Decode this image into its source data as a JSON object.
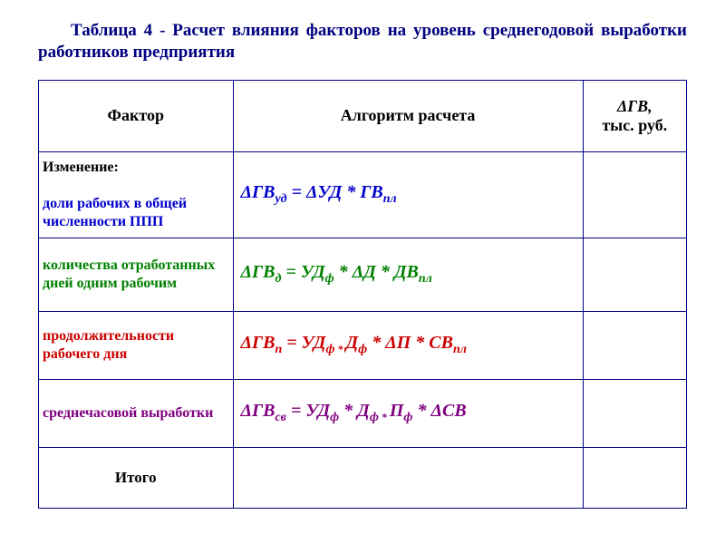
{
  "title": "Таблица 4 - Расчет влияния факторов на уровень среднегодовой выработки работников предприятия",
  "table": {
    "headers": {
      "factor": "Фактор",
      "algorithm": "Алгоритм расчета",
      "value_line1": "ΔГВ,",
      "value_line2": "тыс. руб."
    },
    "rows": [
      {
        "factor_lead": "Изменение:",
        "factor_body": "доли рабочих в общей численности  ППП",
        "factor_color": "blue",
        "formula": {
          "color": "blue",
          "lhs_base": "ΔГВ",
          "lhs_sub": "уд",
          "terms": [
            {
              "base": "ΔУД",
              "sub": ""
            },
            {
              "base": "ГВ",
              "sub": "пл"
            }
          ]
        },
        "value": ""
      },
      {
        "factor_body": "количества отработанных дней одним рабочим",
        "factor_color": "green",
        "formula": {
          "color": "green",
          "lhs_base": "ΔГВ",
          "lhs_sub": "д",
          "terms": [
            {
              "base": "УД",
              "sub": "ф"
            },
            {
              "base": "ΔД",
              "sub": ""
            },
            {
              "base": "ДВ",
              "sub": "пл"
            }
          ]
        },
        "value": ""
      },
      {
        "factor_body": "продолжительности рабочего дня",
        "factor_color": "red",
        "formula": {
          "color": "red",
          "lhs_base": "ΔГВ",
          "lhs_sub": "п",
          "terms": [
            {
              "base": "УД",
              "sub": "ф",
              "smallstar": true
            },
            {
              "base": "Д",
              "sub": "ф"
            },
            {
              "base": "ΔП",
              "sub": ""
            },
            {
              "base": "СВ",
              "sub": "пл"
            }
          ]
        },
        "value": ""
      },
      {
        "factor_body": "среднечасовой выработки",
        "factor_color": "purple",
        "formula": {
          "color": "purple",
          "lhs_base": "ΔГВ",
          "lhs_sub": "св",
          "terms": [
            {
              "base": "УД",
              "sub": "ф"
            },
            {
              "base": "Д",
              "sub": "ф",
              "smallstar": true
            },
            {
              "base": "П",
              "sub": "ф"
            },
            {
              "base": "ΔСВ",
              "sub": ""
            }
          ]
        },
        "value": ""
      }
    ],
    "total_label": "Итого",
    "total_value": ""
  },
  "colors": {
    "border": "#000080",
    "title": "#000080",
    "blue": "#0000cc",
    "green": "#008000",
    "red": "#cc0000",
    "purple": "#800080",
    "black": "#000000",
    "background": "#ffffff"
  }
}
